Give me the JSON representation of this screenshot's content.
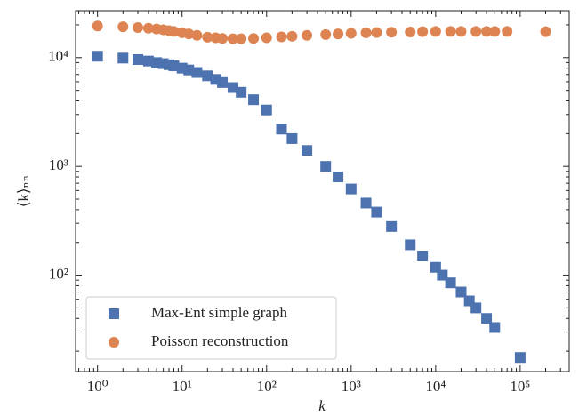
{
  "chart_data": {
    "type": "scatter",
    "xlabel": "k",
    "ylabel": "⟨k⟩ₙₙ",
    "log_x": true,
    "log_y": true,
    "legend": "lower left",
    "xlim": [
      0.55,
      380000
    ],
    "ylim": [
      13,
      27000
    ],
    "xticks": [
      {
        "value": 1,
        "label": "10⁰"
      },
      {
        "value": 10,
        "label": "10¹"
      },
      {
        "value": 100,
        "label": "10²"
      },
      {
        "value": 1000,
        "label": "10³"
      },
      {
        "value": 10000,
        "label": "10⁴"
      },
      {
        "value": 100000,
        "label": "10⁵"
      }
    ],
    "yticks": [
      {
        "value": 100,
        "label": "10²"
      },
      {
        "value": 1000,
        "label": "10³"
      },
      {
        "value": 10000,
        "label": "10⁴"
      }
    ],
    "series": [
      {
        "name": "Max-Ent simple graph",
        "color": "#4c72b0",
        "marker": "square",
        "x": [
          1,
          2,
          3,
          4,
          5,
          6,
          7,
          8,
          10,
          12,
          15,
          20,
          25,
          30,
          40,
          50,
          70,
          100,
          150,
          200,
          300,
          500,
          700,
          1000,
          1500,
          2000,
          3000,
          5000,
          7000,
          10000,
          12000,
          15000,
          20000,
          25000,
          30000,
          40000,
          50000,
          100000
        ],
        "values": [
          10300,
          9900,
          9600,
          9300,
          9000,
          8800,
          8600,
          8400,
          8000,
          7700,
          7300,
          6800,
          6300,
          5900,
          5300,
          4800,
          4100,
          3300,
          2200,
          1800,
          1400,
          1000,
          800,
          620,
          460,
          380,
          280,
          190,
          150,
          118,
          100,
          85,
          70,
          58,
          50,
          40,
          33,
          17.5
        ]
      },
      {
        "name": "Poisson reconstruction",
        "color": "#dd8452",
        "marker": "circle",
        "x": [
          1,
          2,
          3,
          4,
          5,
          6,
          7,
          8,
          10,
          12,
          15,
          20,
          25,
          30,
          40,
          50,
          70,
          100,
          150,
          200,
          300,
          500,
          700,
          1000,
          1500,
          2000,
          3000,
          5000,
          7000,
          10000,
          15000,
          20000,
          30000,
          40000,
          50000,
          70000,
          200000
        ],
        "values": [
          19500,
          19200,
          18900,
          18600,
          18300,
          18000,
          17700,
          17400,
          16900,
          16500,
          16000,
          15400,
          15200,
          15000,
          14900,
          14900,
          15000,
          15200,
          15500,
          15700,
          16000,
          16300,
          16500,
          16700,
          16900,
          17000,
          17100,
          17200,
          17300,
          17400,
          17400,
          17400,
          17400,
          17400,
          17400,
          17400,
          17300
        ]
      }
    ]
  }
}
